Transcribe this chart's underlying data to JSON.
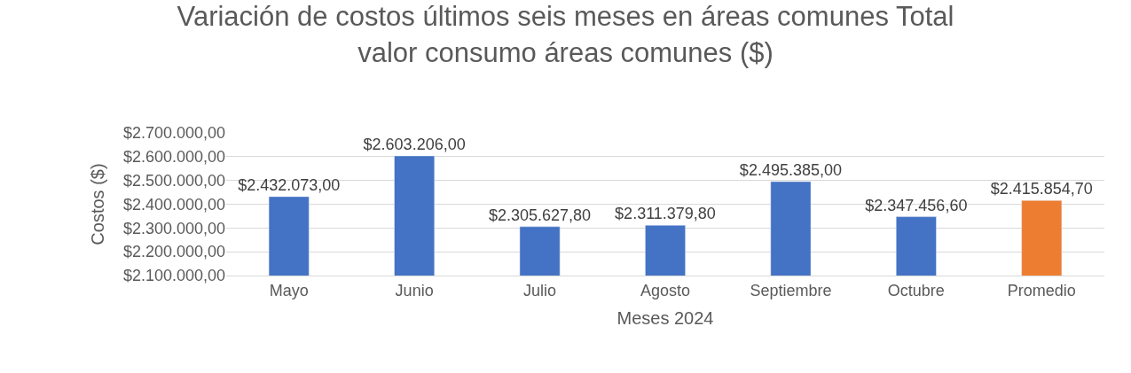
{
  "chart_data": {
    "type": "bar",
    "title": "Variación de costos últimos seis meses en áreas comunes Total valor consumo áreas comunes ($)",
    "xlabel": "Meses 2024",
    "ylabel": "Costos ($)",
    "categories": [
      "Mayo",
      "Junio",
      "Julio",
      "Agosto",
      "Septiembre",
      "Octubre",
      "Promedio"
    ],
    "values": [
      2432073,
      2603206,
      2305627.8,
      2311379.8,
      2495385,
      2347456.6,
      2415854.7
    ],
    "colors": [
      "#4472c4",
      "#4472c4",
      "#4472c4",
      "#4472c4",
      "#4472c4",
      "#4472c4",
      "#ed7d31"
    ],
    "value_labels": [
      "$2.432.073,00",
      "$2.603.206,00",
      "$2.305.627,80",
      "$2.311.379,80",
      "$2.495.385,00",
      "$2.347.456,60",
      "$2.415.854,70"
    ],
    "ylim": [
      2100000,
      2700000
    ],
    "yticks": [
      {
        "value": 2100000,
        "label": "$2.100.000,00"
      },
      {
        "value": 2200000,
        "label": "$2.200.000,00"
      },
      {
        "value": 2300000,
        "label": "$2.300.000,00"
      },
      {
        "value": 2400000,
        "label": "$2.400.000,00"
      },
      {
        "value": 2500000,
        "label": "$2.500.000,00"
      },
      {
        "value": 2600000,
        "label": "$2.600.000,00"
      },
      {
        "value": 2700000,
        "label": "$2.700.000,00"
      }
    ],
    "grid": "y",
    "legend": false
  }
}
